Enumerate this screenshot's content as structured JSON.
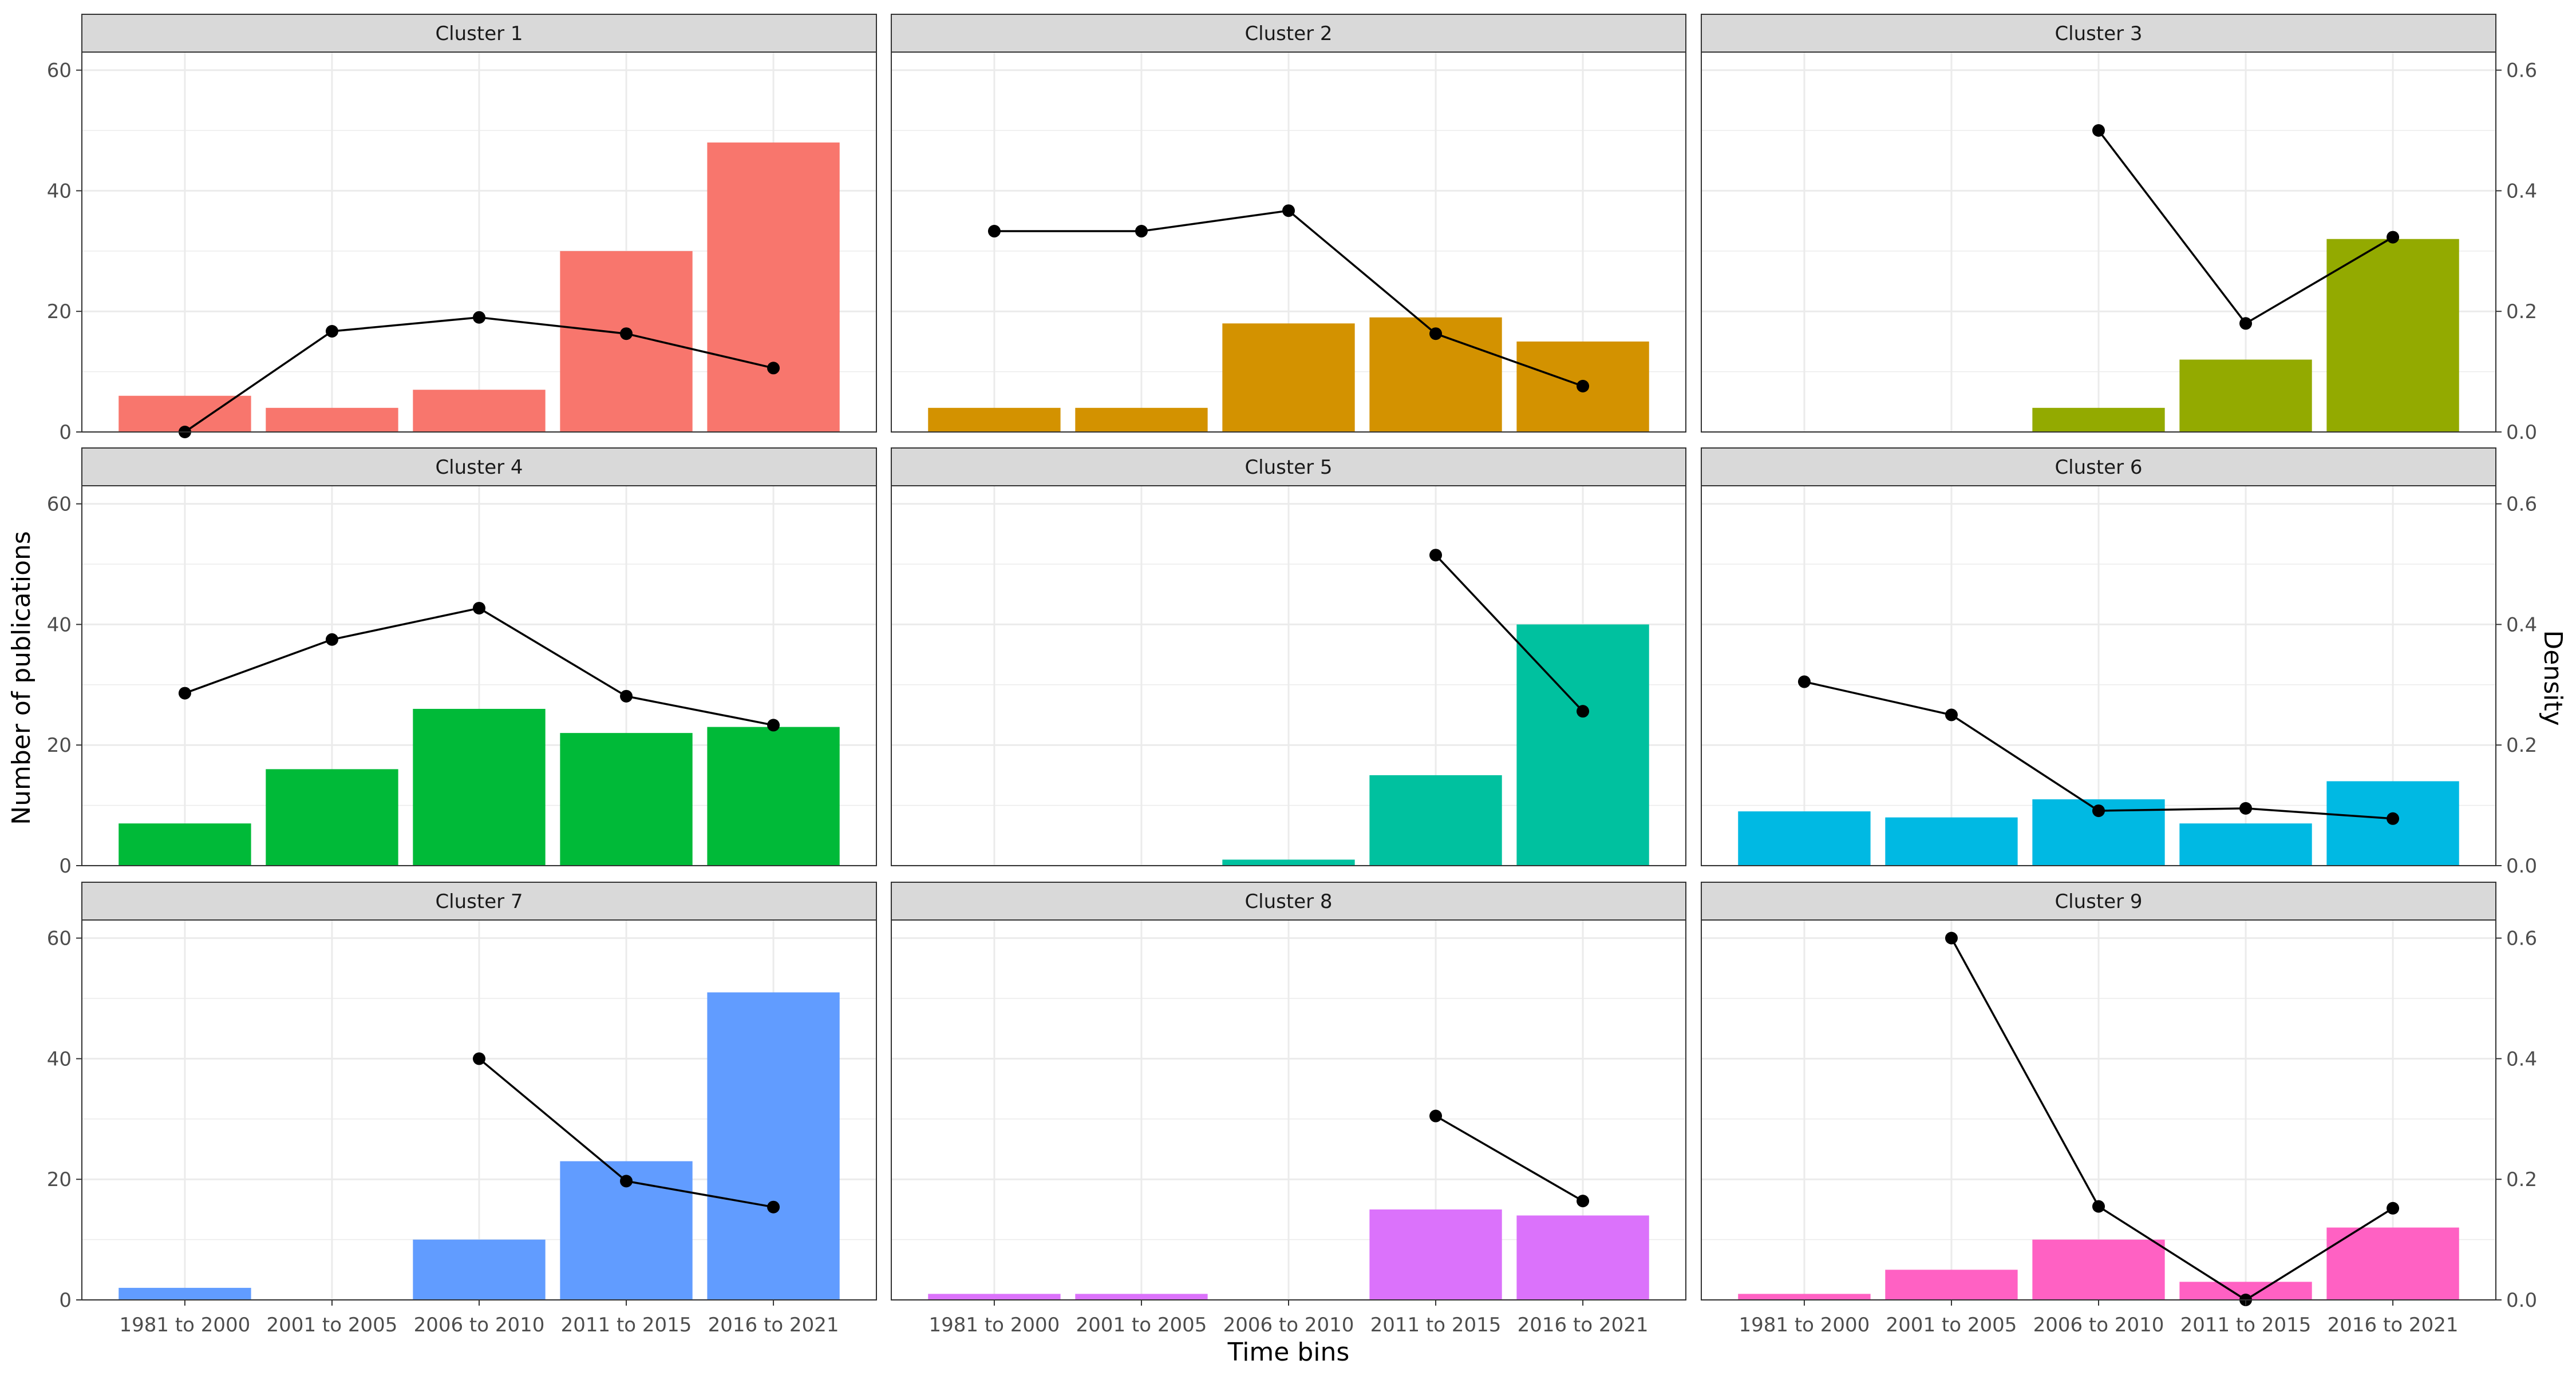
{
  "chart_data": {
    "type": "bar",
    "layout": "faceted 3x3 grid with shared axes",
    "xlabel": "Time bins",
    "ylabel": "Number of publications",
    "y2label": "Density",
    "categories": [
      "1981 to 2000",
      "2001 to 2005",
      "2006 to 2010",
      "2011 to 2015",
      "2016 to 2021"
    ],
    "ylim": [
      0,
      63
    ],
    "yticks": [
      0,
      20,
      40,
      60
    ],
    "y2lim": [
      0,
      0.63
    ],
    "y2ticks": [
      0.0,
      0.2,
      0.4,
      0.6
    ],
    "y2tick_labels": [
      "0.0",
      "0.2",
      "0.4",
      "0.6"
    ],
    "grid": true,
    "legend": "none",
    "line_color": "#000000",
    "panel_strip_color": "#d9d9d9",
    "panels": [
      {
        "title": "Cluster 1",
        "color": "#F8766D",
        "bars": [
          6,
          4,
          7,
          30,
          48
        ],
        "density": [
          0.0,
          0.167,
          0.19,
          0.163,
          0.106
        ]
      },
      {
        "title": "Cluster 2",
        "color": "#D39200",
        "bars": [
          4,
          4,
          18,
          19,
          15
        ],
        "density": [
          0.333,
          0.333,
          0.367,
          0.163,
          0.076
        ]
      },
      {
        "title": "Cluster 3",
        "color": "#93AA00",
        "bars": [
          null,
          null,
          4,
          12,
          32
        ],
        "density": [
          null,
          null,
          0.5,
          0.18,
          0.323
        ]
      },
      {
        "title": "Cluster 4",
        "color": "#00BA38",
        "bars": [
          7,
          16,
          26,
          22,
          23
        ],
        "density": [
          0.286,
          0.375,
          0.427,
          0.281,
          0.233
        ]
      },
      {
        "title": "Cluster 5",
        "color": "#00C19F",
        "bars": [
          null,
          null,
          1,
          15,
          40
        ],
        "density": [
          null,
          null,
          null,
          0.515,
          0.256
        ]
      },
      {
        "title": "Cluster 6",
        "color": "#00B9E3",
        "bars": [
          9,
          8,
          11,
          7,
          14
        ],
        "density": [
          0.305,
          0.25,
          0.091,
          0.095,
          0.078
        ]
      },
      {
        "title": "Cluster 7",
        "color": "#619CFF",
        "bars": [
          2,
          null,
          10,
          23,
          51
        ],
        "density": [
          null,
          null,
          0.4,
          0.197,
          0.154
        ]
      },
      {
        "title": "Cluster 8",
        "color": "#DB72FB",
        "bars": [
          1,
          1,
          null,
          15,
          14
        ],
        "density": [
          null,
          null,
          null,
          0.305,
          0.164
        ]
      },
      {
        "title": "Cluster 9",
        "color": "#FF61C3",
        "bars": [
          1,
          5,
          10,
          3,
          12
        ],
        "density": [
          null,
          0.6,
          0.155,
          0.0,
          0.152
        ]
      }
    ]
  }
}
